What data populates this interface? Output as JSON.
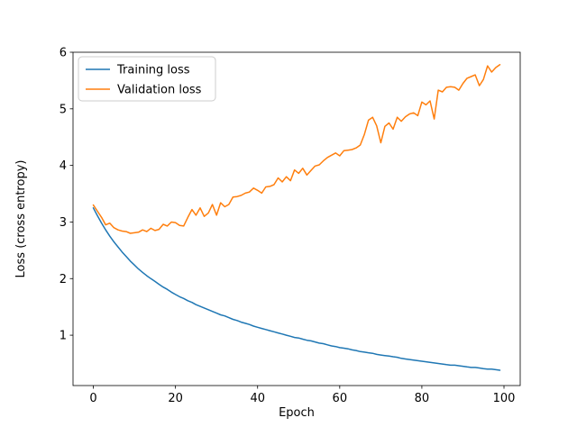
{
  "figure": {
    "background": "#ffffff"
  },
  "chart_data": {
    "type": "line",
    "title": "",
    "xlabel": "Epoch",
    "ylabel": "Loss (cross entropy)",
    "xlim": [
      -4.95,
      103.95
    ],
    "ylim": [
      0.11,
      6.0
    ],
    "xticks": [
      0,
      20,
      40,
      60,
      80,
      100
    ],
    "yticks": [
      1,
      2,
      3,
      4,
      5,
      6
    ],
    "grid": false,
    "legend": {
      "position": "upper left",
      "frame_border_color": "#cccccc",
      "frame_fill": "#ffffff"
    },
    "x0": 0,
    "dx": 1,
    "series": [
      {
        "name": "Training loss",
        "color": "#1f77b4",
        "values": [
          3.25,
          3.11,
          2.98,
          2.86,
          2.75,
          2.65,
          2.56,
          2.47,
          2.39,
          2.31,
          2.24,
          2.17,
          2.11,
          2.05,
          2.0,
          1.95,
          1.9,
          1.85,
          1.81,
          1.76,
          1.72,
          1.68,
          1.65,
          1.61,
          1.58,
          1.54,
          1.51,
          1.48,
          1.45,
          1.42,
          1.39,
          1.36,
          1.34,
          1.31,
          1.28,
          1.26,
          1.23,
          1.21,
          1.19,
          1.16,
          1.14,
          1.12,
          1.1,
          1.08,
          1.06,
          1.04,
          1.02,
          1.0,
          0.98,
          0.96,
          0.95,
          0.93,
          0.91,
          0.9,
          0.88,
          0.86,
          0.85,
          0.83,
          0.81,
          0.8,
          0.78,
          0.77,
          0.76,
          0.74,
          0.73,
          0.71,
          0.7,
          0.69,
          0.68,
          0.66,
          0.65,
          0.64,
          0.63,
          0.62,
          0.61,
          0.59,
          0.58,
          0.57,
          0.56,
          0.55,
          0.54,
          0.53,
          0.52,
          0.51,
          0.5,
          0.49,
          0.48,
          0.47,
          0.47,
          0.46,
          0.45,
          0.44,
          0.43,
          0.43,
          0.42,
          0.41,
          0.4,
          0.4,
          0.39,
          0.38
        ]
      },
      {
        "name": "Validation loss",
        "color": "#ff7f0e",
        "values": [
          3.3,
          3.19,
          3.08,
          2.95,
          2.98,
          2.9,
          2.86,
          2.84,
          2.83,
          2.8,
          2.81,
          2.82,
          2.86,
          2.83,
          2.89,
          2.85,
          2.87,
          2.96,
          2.93,
          3.0,
          2.99,
          2.94,
          2.93,
          3.08,
          3.22,
          3.12,
          3.25,
          3.1,
          3.16,
          3.31,
          3.12,
          3.34,
          3.27,
          3.31,
          3.44,
          3.45,
          3.47,
          3.51,
          3.53,
          3.6,
          3.56,
          3.51,
          3.62,
          3.63,
          3.66,
          3.78,
          3.71,
          3.8,
          3.73,
          3.92,
          3.86,
          3.95,
          3.83,
          3.91,
          3.99,
          4.01,
          4.08,
          4.14,
          4.18,
          4.22,
          4.17,
          4.26,
          4.27,
          4.28,
          4.31,
          4.36,
          4.55,
          4.8,
          4.85,
          4.7,
          4.4,
          4.69,
          4.75,
          4.64,
          4.85,
          4.78,
          4.86,
          4.91,
          4.93,
          4.88,
          5.12,
          5.07,
          5.14,
          4.82,
          5.33,
          5.3,
          5.38,
          5.39,
          5.38,
          5.33,
          5.45,
          5.54,
          5.57,
          5.6,
          5.41,
          5.52,
          5.76,
          5.65,
          5.73,
          5.78
        ]
      }
    ]
  }
}
